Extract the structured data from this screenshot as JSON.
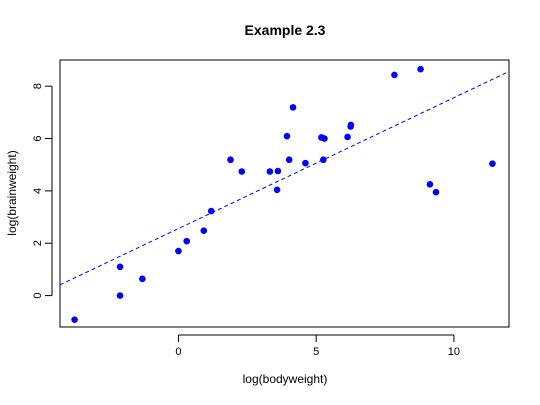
{
  "chart_data": {
    "type": "scatter",
    "title": "Example 2.3",
    "xlabel": "log(bodyweight)",
    "ylabel": "log(brainweight)",
    "xlim": [
      -4.3,
      12.0
    ],
    "ylim": [
      -1.2,
      9.0
    ],
    "xticks": [
      0,
      5,
      10
    ],
    "yticks": [
      0,
      2,
      4,
      6,
      8
    ],
    "grid": false,
    "legend": "none",
    "point_color": "#0000ff",
    "line_color": "#0000ff",
    "points": [
      {
        "x": -3.77,
        "y": -0.92
      },
      {
        "x": -2.12,
        "y": 0.0
      },
      {
        "x": -2.12,
        "y": 1.1
      },
      {
        "x": -1.31,
        "y": 0.64
      },
      {
        "x": 0.0,
        "y": 1.7
      },
      {
        "x": 0.3,
        "y": 2.08
      },
      {
        "x": 0.92,
        "y": 2.48
      },
      {
        "x": 1.19,
        "y": 3.23
      },
      {
        "x": 1.89,
        "y": 5.19
      },
      {
        "x": 2.3,
        "y": 4.74
      },
      {
        "x": 3.32,
        "y": 4.74
      },
      {
        "x": 3.58,
        "y": 4.04
      },
      {
        "x": 3.61,
        "y": 4.76
      },
      {
        "x": 3.94,
        "y": 6.09
      },
      {
        "x": 4.02,
        "y": 5.19
      },
      {
        "x": 4.16,
        "y": 7.19
      },
      {
        "x": 4.61,
        "y": 5.06
      },
      {
        "x": 5.19,
        "y": 6.04
      },
      {
        "x": 5.26,
        "y": 5.19
      },
      {
        "x": 5.3,
        "y": 6.0
      },
      {
        "x": 6.14,
        "y": 6.06
      },
      {
        "x": 6.25,
        "y": 6.46
      },
      {
        "x": 6.26,
        "y": 6.52
      },
      {
        "x": 7.84,
        "y": 8.43
      },
      {
        "x": 8.79,
        "y": 8.65
      },
      {
        "x": 9.13,
        "y": 4.25
      },
      {
        "x": 9.35,
        "y": 3.95
      },
      {
        "x": 11.4,
        "y": 5.04
      }
    ],
    "fit_line": {
      "intercept": 2.56,
      "slope": 0.5,
      "style": "dashed"
    }
  }
}
